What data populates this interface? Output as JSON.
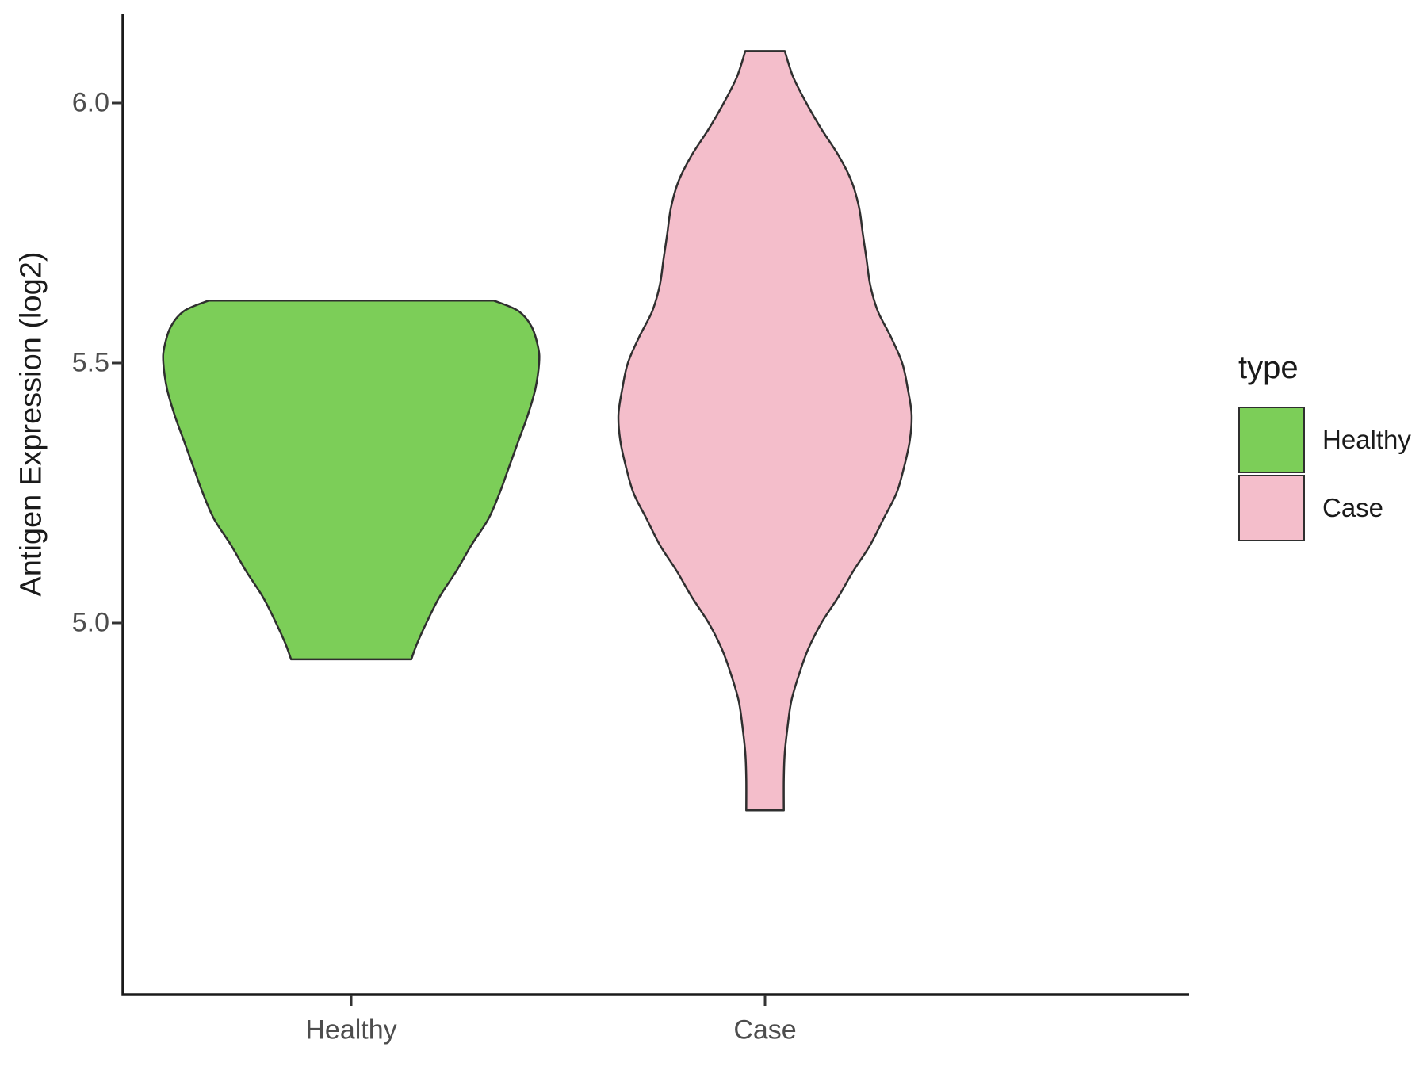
{
  "chart_data": {
    "type": "violin",
    "title": "",
    "xlabel": "",
    "ylabel": "Antigen Expression (log2)",
    "categories": [
      "Healthy",
      "Case"
    ],
    "y_ticks": [
      {
        "label": "6.0",
        "value": 6.0
      },
      {
        "label": "5.5",
        "value": 5.5
      },
      {
        "label": "5.0",
        "value": 5.0
      }
    ],
    "ylim": [
      4.55,
      6.17
    ],
    "grid": false,
    "legend": {
      "title": "type",
      "position": "right",
      "items": [
        {
          "label": "Healthy",
          "fill": "#7CCE58",
          "stroke": "#2f2f2f"
        },
        {
          "label": "Case",
          "fill": "#F4BECB",
          "stroke": "#2f2f2f"
        }
      ]
    },
    "series": [
      {
        "name": "Healthy",
        "fill": "#7CCE58",
        "stroke": "#2f2f2f",
        "value_range": [
          4.93,
          5.62
        ],
        "profile": [
          [
            5.62,
            0.76
          ],
          [
            5.6,
            0.89
          ],
          [
            5.57,
            0.96
          ],
          [
            5.53,
            0.995
          ],
          [
            5.5,
            1.0
          ],
          [
            5.45,
            0.98
          ],
          [
            5.4,
            0.94
          ],
          [
            5.35,
            0.89
          ],
          [
            5.3,
            0.84
          ],
          [
            5.25,
            0.79
          ],
          [
            5.2,
            0.73
          ],
          [
            5.15,
            0.64
          ],
          [
            5.1,
            0.56
          ],
          [
            5.05,
            0.47
          ],
          [
            5.0,
            0.4
          ],
          [
            4.96,
            0.35
          ],
          [
            4.93,
            0.32
          ]
        ]
      },
      {
        "name": "Case",
        "fill": "#F4BECB",
        "stroke": "#2f2f2f",
        "value_range": [
          4.64,
          6.1
        ],
        "profile": [
          [
            6.1,
            0.105
          ],
          [
            6.05,
            0.15
          ],
          [
            6.0,
            0.22
          ],
          [
            5.95,
            0.3
          ],
          [
            5.9,
            0.39
          ],
          [
            5.85,
            0.46
          ],
          [
            5.8,
            0.5
          ],
          [
            5.75,
            0.52
          ],
          [
            5.7,
            0.54
          ],
          [
            5.65,
            0.56
          ],
          [
            5.6,
            0.6
          ],
          [
            5.55,
            0.67
          ],
          [
            5.5,
            0.73
          ],
          [
            5.45,
            0.76
          ],
          [
            5.4,
            0.78
          ],
          [
            5.35,
            0.77
          ],
          [
            5.3,
            0.74
          ],
          [
            5.25,
            0.7
          ],
          [
            5.2,
            0.63
          ],
          [
            5.15,
            0.56
          ],
          [
            5.1,
            0.47
          ],
          [
            5.05,
            0.39
          ],
          [
            5.0,
            0.3
          ],
          [
            4.95,
            0.23
          ],
          [
            4.9,
            0.18
          ],
          [
            4.85,
            0.14
          ],
          [
            4.8,
            0.12
          ],
          [
            4.75,
            0.105
          ],
          [
            4.7,
            0.1
          ],
          [
            4.64,
            0.1
          ]
        ]
      }
    ]
  }
}
